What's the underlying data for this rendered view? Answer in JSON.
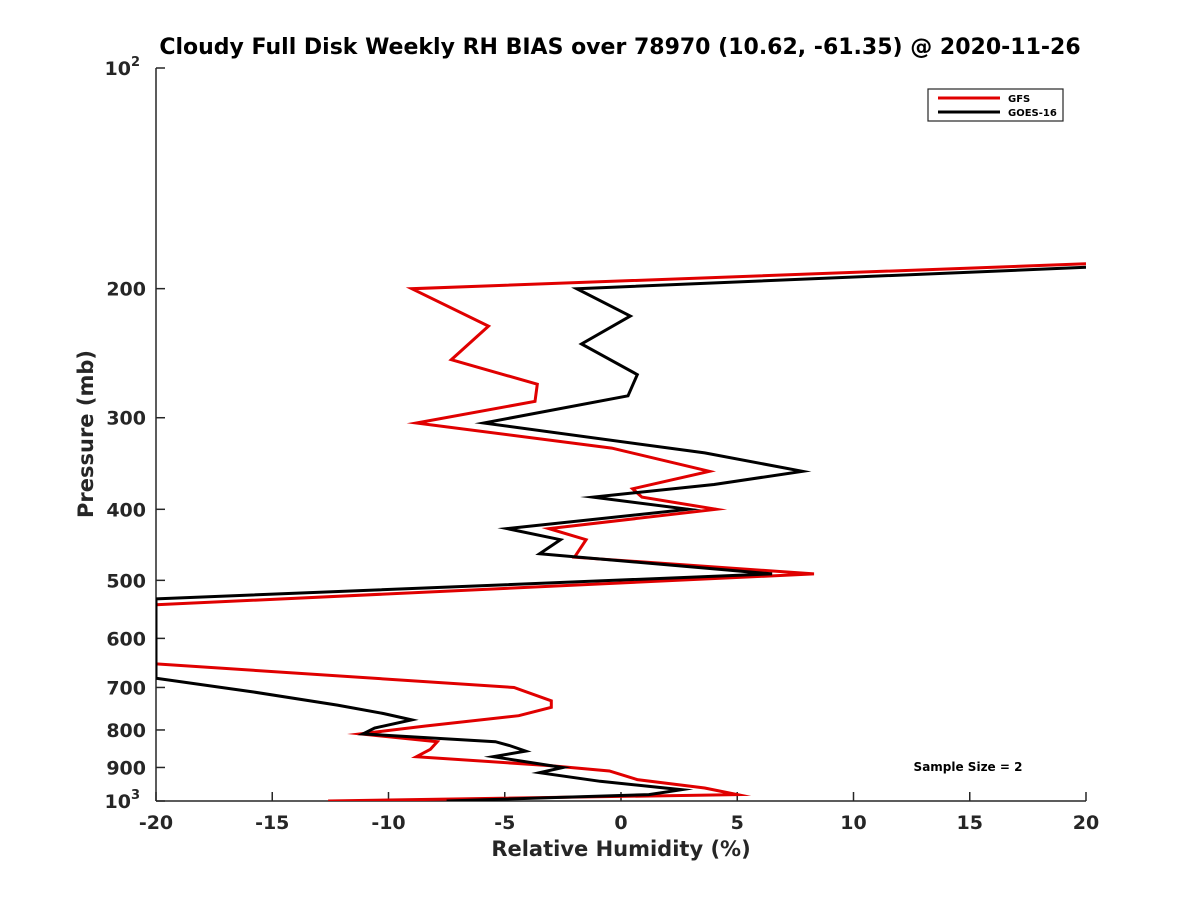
{
  "chart_data": {
    "type": "line",
    "title": "Cloudy Full Disk Weekly RH BIAS over 78970 (10.62, -61.35) @ 2020-11-26",
    "xlabel": "Relative Humidity (%)",
    "ylabel": "Pressure (mb)",
    "xlim": [
      -20,
      20
    ],
    "ylim": [
      100,
      1000
    ],
    "y_scale": "log",
    "y_reversed": true,
    "grid": false,
    "legend_position": "top-right",
    "x_ticks": [
      "-20",
      "-15",
      "-10",
      "-5",
      "0",
      "5",
      "10",
      "15",
      "20"
    ],
    "y_ticks": [
      {
        "value": 100,
        "label": "10",
        "exp": "2"
      },
      {
        "value": 200,
        "label": "200"
      },
      {
        "value": 300,
        "label": "300"
      },
      {
        "value": 400,
        "label": "400"
      },
      {
        "value": 500,
        "label": "500"
      },
      {
        "value": 600,
        "label": "600"
      },
      {
        "value": 700,
        "label": "700"
      },
      {
        "value": 800,
        "label": "800"
      },
      {
        "value": 900,
        "label": "900"
      },
      {
        "value": 1000,
        "label": "10",
        "exp": "3"
      }
    ],
    "annotation": "Sample Size = 2",
    "series": [
      {
        "name": "GFS",
        "color": "#e00000",
        "points": [
          [
            20,
            185
          ],
          [
            -9,
            200
          ],
          [
            -5.7,
            225
          ],
          [
            -7.3,
            250
          ],
          [
            -3.6,
            270
          ],
          [
            -3.7,
            285
          ],
          [
            -8.8,
            305
          ],
          [
            -0.4,
            330
          ],
          [
            3.8,
            355
          ],
          [
            0.5,
            375
          ],
          [
            0.9,
            385
          ],
          [
            4.1,
            400
          ],
          [
            -3.1,
            425
          ],
          [
            -1.5,
            440
          ],
          [
            -2,
            465
          ],
          [
            8.3,
            490
          ],
          [
            -20,
            540
          ],
          [
            -20,
            650
          ],
          [
            -4.6,
            700
          ],
          [
            -3.0,
            730
          ],
          [
            -3.0,
            745
          ],
          [
            -4.4,
            765
          ],
          [
            -8.4,
            790
          ],
          [
            -11.2,
            810
          ],
          [
            -7.9,
            830
          ],
          [
            -8.2,
            850
          ],
          [
            -8.8,
            870
          ],
          [
            -3.0,
            895
          ],
          [
            -0.5,
            910
          ],
          [
            0.7,
            935
          ],
          [
            3.6,
            960
          ],
          [
            5.0,
            980
          ],
          [
            -12.6,
            1000
          ]
        ]
      },
      {
        "name": "GOES-16",
        "color": "#000000",
        "points": [
          [
            20,
            187
          ],
          [
            -1.9,
            200
          ],
          [
            0.4,
            218
          ],
          [
            -1.7,
            238
          ],
          [
            0.7,
            262
          ],
          [
            0.3,
            280
          ],
          [
            -5.9,
            305
          ],
          [
            3.6,
            335
          ],
          [
            7.8,
            355
          ],
          [
            4.0,
            370
          ],
          [
            -1.2,
            385
          ],
          [
            2.9,
            400
          ],
          [
            -4.9,
            425
          ],
          [
            -2.6,
            440
          ],
          [
            -3.5,
            460
          ],
          [
            6.5,
            490
          ],
          [
            -20,
            530
          ],
          [
            -20,
            680
          ],
          [
            -15.8,
            710
          ],
          [
            -12.2,
            740
          ],
          [
            -10.2,
            760
          ],
          [
            -9.0,
            775
          ],
          [
            -10.6,
            795
          ],
          [
            -11.1,
            810
          ],
          [
            -5.4,
            830
          ],
          [
            -4.8,
            840
          ],
          [
            -4.1,
            855
          ],
          [
            -5.5,
            870
          ],
          [
            -2.5,
            900
          ],
          [
            -3.5,
            915
          ],
          [
            -0.9,
            940
          ],
          [
            2.6,
            965
          ],
          [
            1.2,
            980
          ],
          [
            -7.5,
            1000
          ]
        ]
      }
    ]
  }
}
